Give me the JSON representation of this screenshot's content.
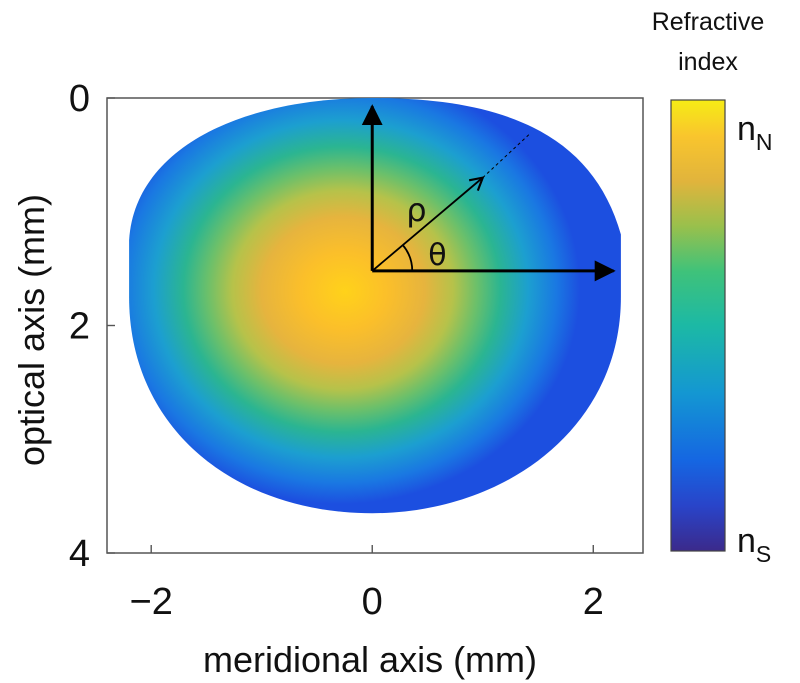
{
  "chart_data": {
    "type": "heatmap",
    "title": "",
    "xlabel": "meridional axis (mm)",
    "ylabel": "optical axis (mm)",
    "xlim": [
      -2.4,
      2.45
    ],
    "ylim": [
      0,
      4
    ],
    "y_inverted": true,
    "x_ticks": [
      "−2",
      "0",
      "2"
    ],
    "x_tick_values": [
      -2,
      0,
      2
    ],
    "y_ticks": [
      "0",
      "2",
      "4"
    ],
    "y_tick_values": [
      0,
      2,
      4
    ],
    "grid": false,
    "colorbar": {
      "title_line1": "Refractive",
      "title_line2": "index",
      "top_label": {
        "base": "n",
        "sub": "N"
      },
      "bottom_label": {
        "base": "n",
        "sub": "S"
      },
      "colors": [
        "#3a2a8c",
        "#1a56d8",
        "#1e9bd0",
        "#1fbc8a",
        "#8cc24a",
        "#f0b636",
        "#f4e81c"
      ]
    },
    "lens": {
      "center": [
        0,
        1.52
      ],
      "anterior_pole": 0.0,
      "posterior_pole": 3.65,
      "equatorial_half_width": 2.2,
      "peak_region_color": "#ffc21a",
      "edge_color": "#1a50e0"
    },
    "annotations": {
      "rho_label": "ρ",
      "theta_label": "θ",
      "origin": [
        0,
        1.52
      ],
      "vertical_arrow_to": [
        0,
        0.02
      ],
      "horizontal_arrow_to": [
        2.22,
        1.52
      ],
      "rho_arrow_to": [
        1.0,
        0.7
      ],
      "rho_dashed_to": [
        1.42,
        0.32
      ]
    }
  }
}
